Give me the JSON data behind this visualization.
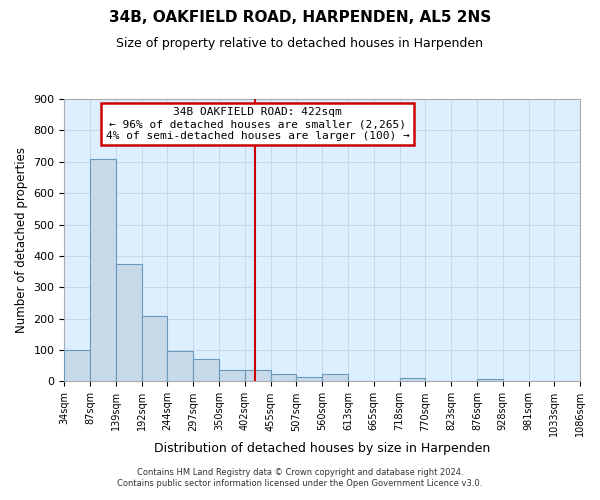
{
  "title": "34B, OAKFIELD ROAD, HARPENDEN, AL5 2NS",
  "subtitle": "Size of property relative to detached houses in Harpenden",
  "xlabel": "Distribution of detached houses by size in Harpenden",
  "ylabel": "Number of detached properties",
  "bin_edges": [
    34,
    87,
    139,
    192,
    244,
    297,
    350,
    402,
    455,
    507,
    560,
    613,
    665,
    718,
    770,
    823,
    876,
    928,
    981,
    1033,
    1086
  ],
  "bin_labels": [
    "34sqm",
    "87sqm",
    "139sqm",
    "192sqm",
    "244sqm",
    "297sqm",
    "350sqm",
    "402sqm",
    "455sqm",
    "507sqm",
    "560sqm",
    "613sqm",
    "665sqm",
    "718sqm",
    "770sqm",
    "823sqm",
    "876sqm",
    "928sqm",
    "981sqm",
    "1033sqm",
    "1086sqm"
  ],
  "bar_heights": [
    100,
    710,
    375,
    208,
    98,
    72,
    35,
    35,
    25,
    15,
    25,
    0,
    0,
    10,
    0,
    0,
    8,
    0,
    0,
    0
  ],
  "bar_color": "#c8daea",
  "bar_edge_color": "#6699bb",
  "marker_value": 422,
  "marker_line_color": "#cc0000",
  "annotation_line1": "34B OAKFIELD ROAD: 422sqm",
  "annotation_line2": "← 96% of detached houses are smaller (2,265)",
  "annotation_line3": "4% of semi-detached houses are larger (100) →",
  "annotation_box_edge": "#cc0000",
  "annotation_box_face": "#ffffff",
  "ylim": [
    0,
    900
  ],
  "yticks": [
    0,
    100,
    200,
    300,
    400,
    500,
    600,
    700,
    800,
    900
  ],
  "grid_color": "#c5d8e8",
  "background_color": "#ddeeff",
  "footer_line1": "Contains HM Land Registry data © Crown copyright and database right 2024.",
  "footer_line2": "Contains public sector information licensed under the Open Government Licence v3.0.",
  "title_fontsize": 11,
  "subtitle_fontsize": 9,
  "xlabel_fontsize": 9,
  "ylabel_fontsize": 8.5,
  "tick_fontsize": 7,
  "ytick_fontsize": 8,
  "annot_fontsize": 8,
  "footer_fontsize": 6
}
